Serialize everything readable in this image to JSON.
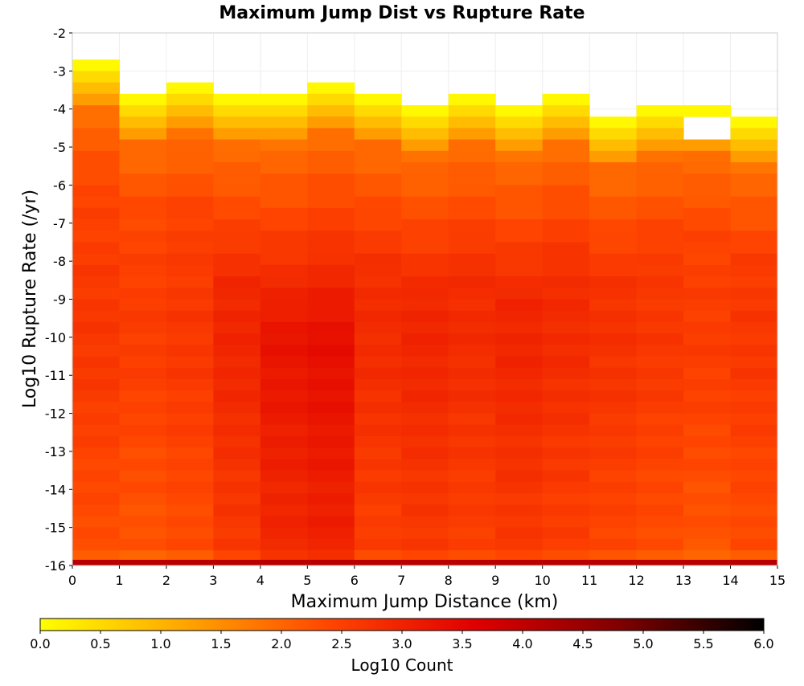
{
  "chart_data": {
    "type": "heatmap",
    "title": "Maximum Jump Dist vs Rupture Rate",
    "xlabel": "Maximum Jump Distance (km)",
    "ylabel": "Log10 Rupture Rate (/yr)",
    "xlim": [
      0,
      15
    ],
    "ylim": [
      -16,
      -2
    ],
    "x_bin_width": 1,
    "y_bin_height": 0.3,
    "x_ticks": [
      "0",
      "1",
      "2",
      "3",
      "4",
      "5",
      "6",
      "7",
      "8",
      "9",
      "10",
      "11",
      "12",
      "13",
      "14",
      "15"
    ],
    "y_ticks": [
      "-2",
      "-3",
      "-4",
      "-5",
      "-6",
      "-7",
      "-8",
      "-9",
      "-10",
      "-11",
      "-12",
      "-13",
      "-14",
      "-15",
      "-16"
    ],
    "x_bins": [
      0.5,
      1.5,
      2.5,
      3.5,
      4.5,
      5.5,
      6.5,
      7.5,
      8.5,
      9.5,
      10.5,
      11.5,
      12.5,
      13.5,
      14.5
    ],
    "column_upper_edges": [
      -2.7,
      -3.6,
      -3.3,
      -3.6,
      -3.6,
      -3.3,
      -3.6,
      -3.9,
      -3.6,
      -3.9,
      -3.6,
      -4.2,
      -3.9,
      -3.9,
      -4.2
    ],
    "empty_cells": [
      {
        "x": 13.5,
        "y_range": [
          -4.8,
          -4.2
        ]
      }
    ],
    "bottom_bin_y": -16,
    "bottom_bin_value": 4.1,
    "grid": true,
    "colorbar": {
      "label": "Log10 Count",
      "range": [
        0,
        6
      ],
      "ticks": [
        "0.0",
        "0.5",
        "1.0",
        "1.5",
        "2.0",
        "2.5",
        "3.0",
        "3.5",
        "4.0",
        "4.5",
        "5.0",
        "5.5",
        "6.0"
      ],
      "colors": [
        "#ffff00",
        "#ffa500",
        "#ff4500",
        "#e00000",
        "#800000",
        "#000000"
      ]
    },
    "cells_log10_count": [
      [
        2.8,
        2.1,
        2.5,
        2.6,
        2.9,
        3.1,
        2.6,
        2.9,
        2.6,
        2.8,
        2.5,
        2.6,
        2.1,
        2.1,
        2.4
      ],
      [
        2.3,
        2.0,
        2.2,
        2.4,
        2.6,
        2.8,
        2.4,
        2.3,
        2.3,
        2.3,
        2.4,
        2.1,
        2.1,
        1.9,
        2.3
      ],
      [
        2.2,
        1.8,
        2.1,
        2.3,
        2.5,
        2.7,
        2.2,
        2.1,
        2.2,
        2.1,
        2.2,
        1.9,
        1.7,
        1.7,
        1.9
      ]
    ],
    "note_cells": []
  }
}
